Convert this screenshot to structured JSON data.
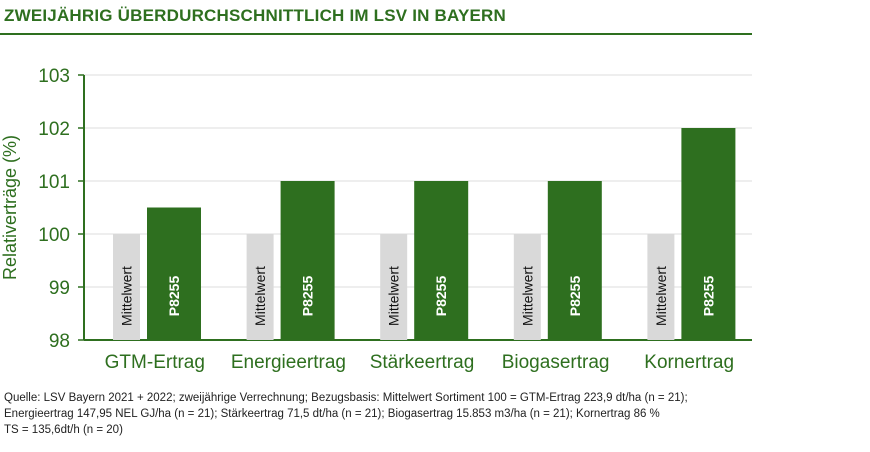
{
  "header": {
    "title": "ZWEIJÄHRIG ÜBERDURCHSCHNITTLICH IM LSV IN BAYERN"
  },
  "colors": {
    "accent": "#2e6f1f",
    "baseline_bar": "#d9d9d9",
    "grid": "#dcdcdc",
    "axis": "#2e6f1f"
  },
  "chart_data": {
    "type": "bar",
    "title": "ZWEIJÄHRIG ÜBERDURCHSCHNITTLICH IM LSV IN BAYERN",
    "xlabel": "",
    "ylabel": "Relativerträge (%)",
    "ylim": [
      98,
      103
    ],
    "yticks": [
      98,
      99,
      100,
      101,
      102,
      103
    ],
    "grid": true,
    "categories": [
      "GTM-Ertrag",
      "Energieertrag",
      "Stärkeertrag",
      "Biogasertrag",
      "Kornertrag"
    ],
    "series": [
      {
        "name": "Mittelwert",
        "values": [
          100,
          100,
          100,
          100,
          100
        ]
      },
      {
        "name": "P8255",
        "values": [
          100.5,
          101,
          101,
          101,
          102
        ]
      }
    ]
  },
  "footnote": {
    "lines": [
      "Quelle: LSV Bayern 2021 + 2022; zweijährige Verrechnung; Bezugsbasis: Mittelwert Sortiment 100 = GTM-Ertrag 223,9 dt/ha (n = 21);",
      "Energieertrag 147,95 NEL GJ/ha (n = 21); Stärkeertrag 71,5 dt/ha (n = 21); Biogasertrag 15.853 m3/ha (n = 21); Kornertrag 86 %",
      "TS = 135,6dt/h (n = 20)"
    ]
  }
}
